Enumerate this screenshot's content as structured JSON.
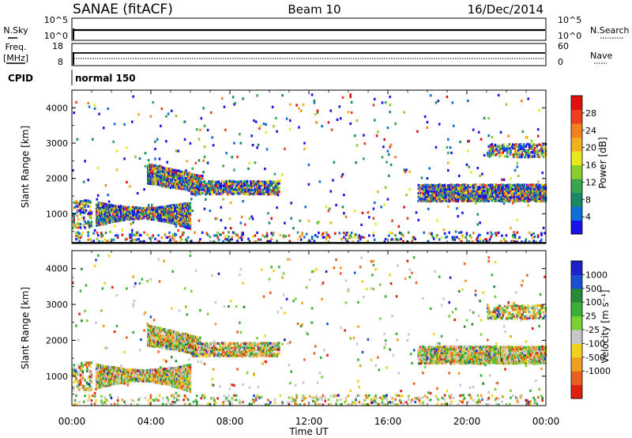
{
  "header": {
    "station": "SANAE (fitACF)",
    "beam": "Beam 10",
    "date": "16/Dec/2014"
  },
  "status_panels": {
    "nsky_label": "N.Sky",
    "nsky_ticks": [
      "10^5",
      "10^0"
    ],
    "nsearch_label": "N.Search",
    "nsearch_ticks": [
      "10^5",
      "10^0"
    ],
    "freq_label": "Freq.",
    "freq_unit": "[MHz]",
    "freq_ticks": [
      "18",
      "8"
    ],
    "nave_label": "Nave",
    "nave_ticks": [
      "60",
      "0"
    ],
    "cpid_label": "CPID",
    "cpid_value": "normal 150"
  },
  "x_axis": {
    "label": "Time UT",
    "ticks": [
      "00:00",
      "04:00",
      "08:00",
      "12:00",
      "16:00",
      "20:00",
      "00:00"
    ],
    "range_hours": [
      0,
      24
    ]
  },
  "chart_data": [
    {
      "type": "heatmap",
      "name": "power",
      "ylabel": "Slant Range [km]",
      "yticks": [
        "1000",
        "2000",
        "3000",
        "4000"
      ],
      "ylim": [
        180,
        4500
      ],
      "colorbar": {
        "label": "Power [dB]",
        "ticks": [
          "4",
          "8",
          "12",
          "16",
          "20",
          "24",
          "28"
        ],
        "range": [
          0,
          32
        ],
        "colors": [
          "#1a10e8",
          "#0c6ed8",
          "#198a64",
          "#3aa450",
          "#8bce2c",
          "#e8e820",
          "#f0b020",
          "#f08020",
          "#ee4020",
          "#e01010"
        ]
      },
      "scatter_bands": [
        {
          "t": [
            0.0,
            1.0
          ],
          "r": [
            600,
            1400
          ],
          "density": 0.35
        },
        {
          "t": [
            1.2,
            6.0
          ],
          "r": [
            650,
            1350
          ],
          "density": 0.9,
          "curve": "dip-left"
        },
        {
          "t": [
            3.8,
            6.5
          ],
          "r": [
            1850,
            2450
          ],
          "density": 0.85,
          "curve": "down-right"
        },
        {
          "t": [
            6.0,
            10.5
          ],
          "r": [
            1550,
            1950
          ],
          "density": 0.7
        },
        {
          "t": [
            17.5,
            24.0
          ],
          "r": [
            1350,
            1850
          ],
          "density": 0.85
        },
        {
          "t": [
            21.0,
            24.0
          ],
          "r": [
            2600,
            3000
          ],
          "density": 0.5
        },
        {
          "t": [
            0.0,
            24.0
          ],
          "r": [
            200,
            500
          ],
          "density": 0.15
        },
        {
          "t": [
            0.0,
            24.0
          ],
          "r": [
            300,
            4400
          ],
          "density": 0.012
        }
      ]
    },
    {
      "type": "heatmap",
      "name": "velocity",
      "ylabel": "Slant Range [km]",
      "yticks": [
        "1000",
        "2000",
        "3000",
        "4000"
      ],
      "ylim": [
        180,
        4500
      ],
      "colorbar": {
        "label": "Velocity [m s⁻¹]",
        "ticks": [
          "1000",
          "500",
          "100",
          "25",
          "-25",
          "-100",
          "-500",
          "-1000"
        ],
        "colors": [
          "#1a22c8",
          "#1a50d0",
          "#2a8a3a",
          "#3ab03a",
          "#7ad030",
          "#c8c8c8",
          "#f0d020",
          "#f0a020",
          "#e86020",
          "#e02010"
        ]
      },
      "scatter_bands": [
        {
          "t": [
            0.0,
            1.0
          ],
          "r": [
            600,
            1400
          ],
          "density": 0.35
        },
        {
          "t": [
            1.2,
            6.0
          ],
          "r": [
            650,
            1350
          ],
          "density": 0.9,
          "curve": "dip-left"
        },
        {
          "t": [
            3.8,
            6.5
          ],
          "r": [
            1850,
            2450
          ],
          "density": 0.85,
          "curve": "down-right"
        },
        {
          "t": [
            6.0,
            10.5
          ],
          "r": [
            1550,
            1950
          ],
          "density": 0.7
        },
        {
          "t": [
            17.5,
            24.0
          ],
          "r": [
            1350,
            1850
          ],
          "density": 0.85
        },
        {
          "t": [
            21.0,
            24.0
          ],
          "r": [
            2600,
            3000
          ],
          "density": 0.5
        },
        {
          "t": [
            0.0,
            24.0
          ],
          "r": [
            200,
            500
          ],
          "density": 0.15
        },
        {
          "t": [
            0.0,
            24.0
          ],
          "r": [
            300,
            4400
          ],
          "density": 0.012
        }
      ]
    }
  ]
}
